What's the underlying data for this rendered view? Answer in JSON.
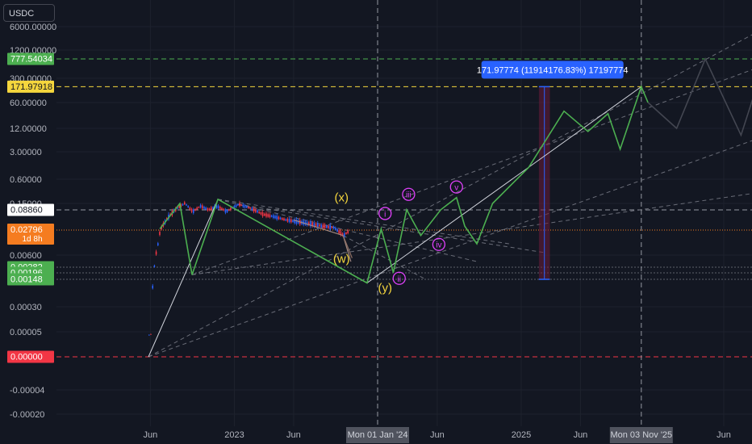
{
  "symbol": "USDC",
  "y_ticks": [
    {
      "label": "6000.00000",
      "y": 6000
    },
    {
      "label": "1200.00000",
      "y": 1200
    },
    {
      "label": "300.00000",
      "y": 300
    },
    {
      "label": "60.00000",
      "y": 60
    },
    {
      "label": "12.00000",
      "y": 12
    },
    {
      "label": "3.00000",
      "y": 3
    },
    {
      "label": "0.60000",
      "y": 0.6
    },
    {
      "label": "0.15000",
      "y": 0.15
    },
    {
      "label": "0.00600",
      "y": 0.006
    },
    {
      "label": "0.00030",
      "y": 0.0003
    },
    {
      "label": "0.00005",
      "y": 5e-05
    },
    {
      "label": "-0.00004",
      "y": -4e-05
    },
    {
      "label": "-0.00020",
      "y": -0.0002
    }
  ],
  "x_ticks": [
    {
      "label": "Jun",
      "date": "2022-06"
    },
    {
      "label": "2023",
      "date": "2023-01"
    },
    {
      "label": "Jun",
      "date": "2023-06"
    },
    {
      "label": "Jun",
      "date": "2024-06"
    },
    {
      "label": "2025",
      "date": "2025-01"
    },
    {
      "label": "Jun",
      "date": "2025-06"
    },
    {
      "label": "Jun",
      "date": "2026-06"
    }
  ],
  "x_crosshair_labels": [
    {
      "label": "Mon 01 Jan '24",
      "date": "2024-01-01"
    },
    {
      "label": "Mon 03 Nov '25",
      "date": "2025-11-03"
    }
  ],
  "price_badges": [
    {
      "label": "777.54034",
      "value": 777.54034,
      "color": "#4caf50",
      "text_color": "#ffffff"
    },
    {
      "label": "171.97918",
      "value": 171.97918,
      "color": "#f5d63d",
      "text_color": "#131722"
    },
    {
      "label": "0.08860",
      "value": 0.0886,
      "color": "#ffffff",
      "text_color": "#131722"
    },
    {
      "label": "0.02796",
      "sublabel": "1d 8h",
      "value": 0.02796,
      "color": "#f57c20",
      "text_color": "#ffffff"
    },
    {
      "label": "0.00282",
      "value": 0.00282,
      "color": "#4caf50",
      "text_color": "#ffffff"
    },
    {
      "label": "0.00196",
      "value": 0.00196,
      "color": "#4caf50",
      "text_color": "#ffffff"
    },
    {
      "label": "0.00148",
      "value": 0.00148,
      "color": "#4caf50",
      "text_color": "#ffffff"
    },
    {
      "label": "0.00000",
      "value": 0.0,
      "color": "#f23645",
      "text_color": "#ffffff"
    }
  ],
  "measure_label": "171.97774 (11914176.83%) 17197774",
  "wave_labels": [
    {
      "text": "(x)",
      "color": "#f5d63d",
      "date": "2023-10-01",
      "value": 0.17
    },
    {
      "text": "(w)",
      "color": "#f5d63d",
      "date": "2023-10-01",
      "value": 0.0037
    },
    {
      "text": "(y)",
      "color": "#f5d63d",
      "date": "2024-01-20",
      "value": 0.00072
    },
    {
      "text": "i",
      "color": "#e040fb",
      "date": "2024-01-20",
      "value": 0.06
    },
    {
      "text": "ii",
      "color": "#e040fb",
      "date": "2024-02-25",
      "value": 0.0013
    },
    {
      "text": "iii",
      "color": "#e040fb",
      "date": "2024-03-20",
      "value": 0.21
    },
    {
      "text": "iv",
      "color": "#e040fb",
      "date": "2024-06-05",
      "value": 0.0095
    },
    {
      "text": "v",
      "color": "#e040fb",
      "date": "2024-07-20",
      "value": 0.32
    }
  ],
  "colors": {
    "background": "#131722",
    "grid": "#1e222d",
    "bull_candle": "#2962ff",
    "bear_candle": "#f23645",
    "green_path": "#4caf50",
    "white_line": "#d1d4dc",
    "dashed_line": "#787b86",
    "measure_fill": "#6a1b3a",
    "measure_badge": "#2962ff"
  },
  "chart_data": {
    "type": "line",
    "y_scale": "log",
    "series": [
      {
        "values": [
          [
            "2022-05-27",
            0.0
          ],
          [
            "2022-06-01",
            0.0003
          ],
          [
            "2022-06-10",
            0.004
          ],
          [
            "2022-06-25",
            0.03
          ],
          [
            "2022-07-15",
            0.06
          ],
          [
            "2022-08-05",
            0.1
          ],
          [
            "2022-08-25",
            0.15
          ],
          [
            "2022-09-15",
            0.08
          ],
          [
            "2022-10-05",
            0.12
          ],
          [
            "2022-10-25",
            0.09
          ],
          [
            "2022-11-15",
            0.12
          ],
          [
            "2022-12-10",
            0.08
          ],
          [
            "2023-01-10",
            0.14
          ],
          [
            "2023-02-10",
            0.1
          ],
          [
            "2023-03-10",
            0.07
          ],
          [
            "2023-04-10",
            0.06
          ],
          [
            "2023-05-10",
            0.05
          ],
          [
            "2023-06-10",
            0.045
          ],
          [
            "2023-07-10",
            0.04
          ],
          [
            "2023-08-10",
            0.035
          ],
          [
            "2023-09-10",
            0.032
          ],
          [
            "2023-10-05",
            0.02
          ],
          [
            "2023-10-20",
            0.028
          ]
        ]
      },
      {
        "values": [
          [
            "2022-06-25",
            0.03
          ],
          [
            "2022-08-15",
            0.15
          ],
          [
            "2022-09-15",
            0.0018
          ],
          [
            "2022-11-20",
            0.19
          ],
          [
            "2023-12-05",
            0.0012
          ],
          [
            "2024-01-10",
            0.03
          ],
          [
            "2024-02-10",
            0.002
          ],
          [
            "2024-03-15",
            0.09
          ],
          [
            "2024-04-20",
            0.02
          ],
          [
            "2024-06-10",
            0.09
          ],
          [
            "2024-07-20",
            0.21
          ],
          [
            "2024-08-10",
            0.035
          ],
          [
            "2024-09-10",
            0.012
          ],
          [
            "2024-10-20",
            0.15
          ],
          [
            "2025-01-20",
            1.2
          ],
          [
            "2025-04-20",
            35
          ],
          [
            "2025-06-20",
            10
          ],
          [
            "2025-08-10",
            30
          ],
          [
            "2025-09-10",
            3.5
          ],
          [
            "2025-11-03",
            171.97918
          ],
          [
            "2025-11-20",
            60
          ]
        ]
      },
      {
        "values": [
          [
            "2025-11-20",
            60
          ],
          [
            "2026-02-01",
            12
          ],
          [
            "2026-04-15",
            777.54034
          ],
          [
            "2026-07-15",
            8
          ],
          [
            "2026-09-20",
            1000
          ]
        ]
      }
    ]
  }
}
